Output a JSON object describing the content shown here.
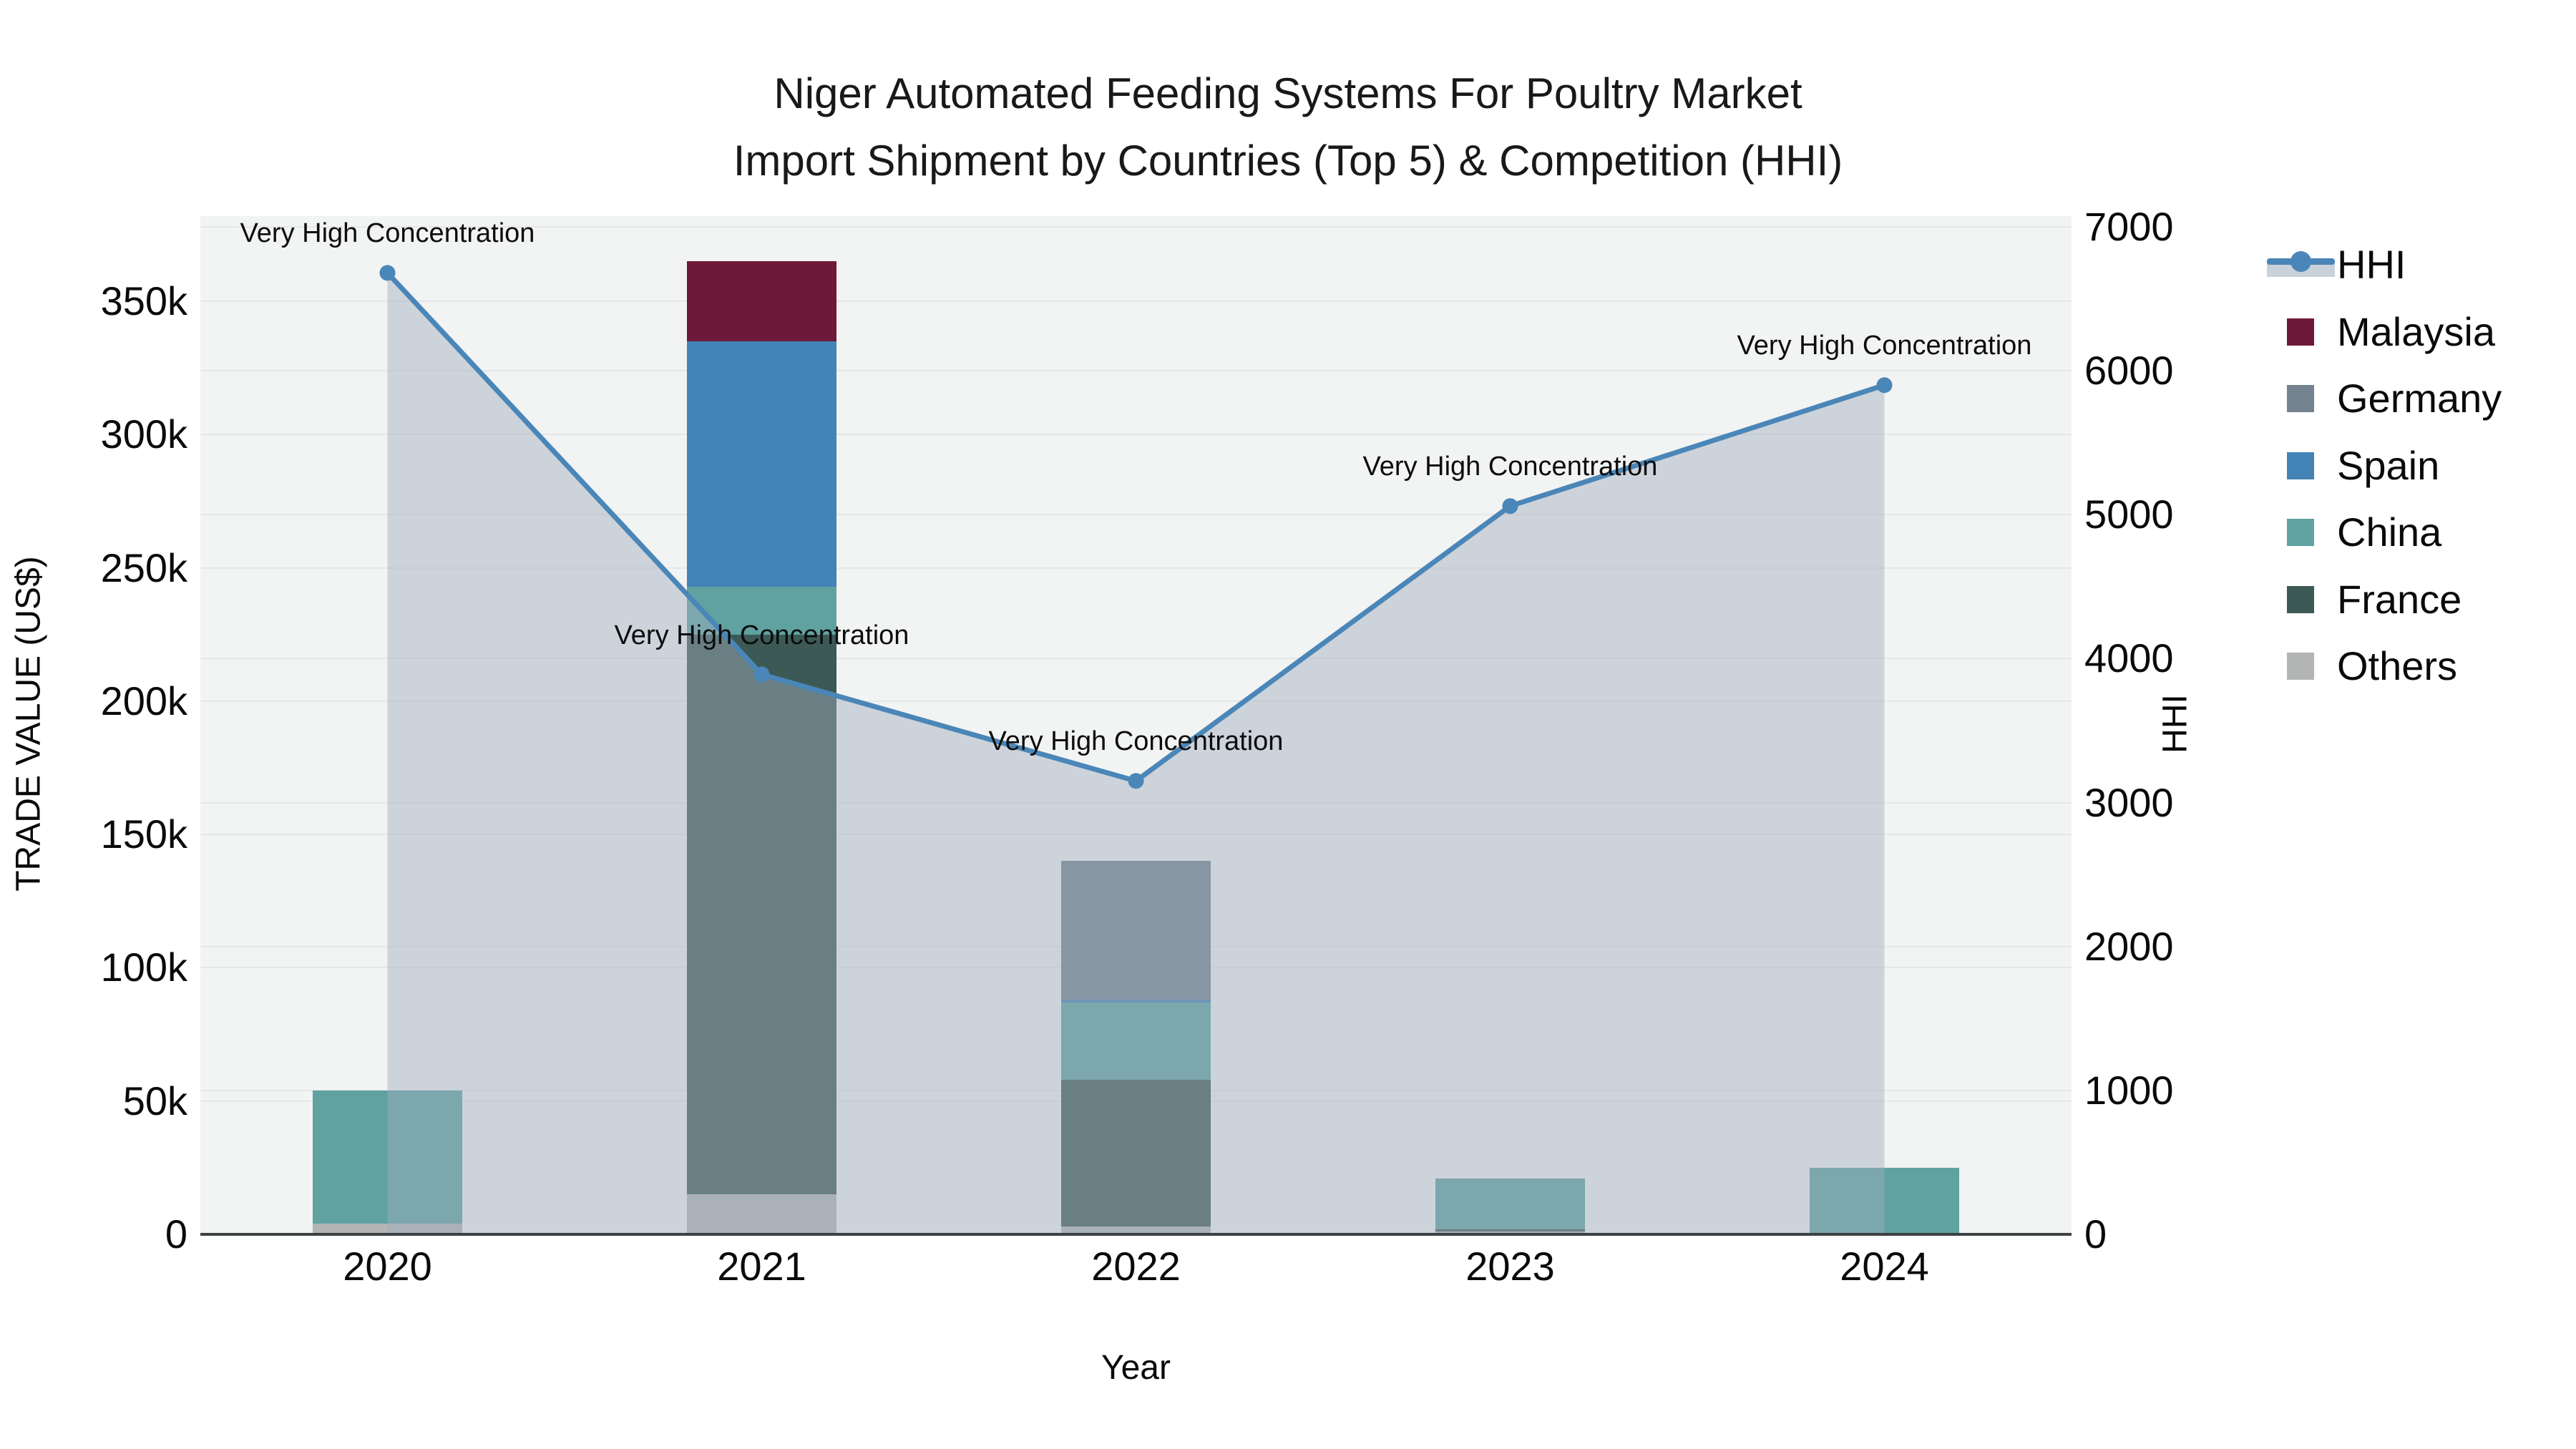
{
  "title": {
    "line1": "Niger Automated Feeding Systems For Poultry Market",
    "line2": "Import Shipment by Countries (Top 5) & Competition (HHI)"
  },
  "chart_data": {
    "type": "bar+line",
    "categories": [
      "2020",
      "2021",
      "2022",
      "2023",
      "2024"
    ],
    "value_unit": "thousand US$",
    "stack_order": [
      "Others",
      "France",
      "China",
      "Spain",
      "Germany",
      "Malaysia"
    ],
    "series": [
      {
        "name": "Malaysia",
        "color": "#6d1a3a",
        "values": [
          0,
          30,
          0,
          0,
          0
        ]
      },
      {
        "name": "Germany",
        "color": "#75828f",
        "values": [
          0,
          0,
          52,
          0,
          0
        ]
      },
      {
        "name": "Spain",
        "color": "#4383b5",
        "values": [
          0,
          92,
          1,
          0,
          0
        ]
      },
      {
        "name": "China",
        "color": "#60a2a0",
        "values": [
          50,
          18,
          29,
          19,
          25
        ]
      },
      {
        "name": "France",
        "color": "#3c5956",
        "values": [
          0,
          210,
          55,
          1,
          0
        ]
      },
      {
        "name": "Others",
        "color": "#b3b4b4",
        "values": [
          4,
          15,
          3,
          1,
          0
        ]
      }
    ],
    "line_series": {
      "name": "HHI",
      "color": "#4a86b8",
      "area_fill": "rgba(160,172,188,0.45)",
      "values": [
        6680,
        3890,
        3150,
        5060,
        5900
      ]
    },
    "annotations": [
      "Very High Concentration",
      "Very High Concentration",
      "Very High Concentration",
      "Very High Concentration",
      "Very High Concentration"
    ],
    "xlabel": "Year",
    "ylabel_left": "TRADE VALUE (US$)",
    "ylabel_right": "HHI",
    "y_left_ticks": [
      "0",
      "50k",
      "100k",
      "150k",
      "200k",
      "250k",
      "300k",
      "350k"
    ],
    "y_left_tick_values": [
      0,
      50,
      100,
      150,
      200,
      250,
      300,
      350
    ],
    "y_right_ticks": [
      "0",
      "1000",
      "2000",
      "3000",
      "4000",
      "5000",
      "6000",
      "7000"
    ],
    "y_right_tick_values": [
      0,
      1000,
      2000,
      3000,
      4000,
      5000,
      6000,
      7000
    ],
    "ylim_left_k": [
      0,
      382
    ],
    "ylim_right": [
      0,
      7080
    ],
    "grid": true,
    "legend_position": "right",
    "legend_order": [
      "HHI",
      "Malaysia",
      "Germany",
      "Spain",
      "China",
      "France",
      "Others"
    ],
    "plot_background": "#f2f3f3"
  }
}
